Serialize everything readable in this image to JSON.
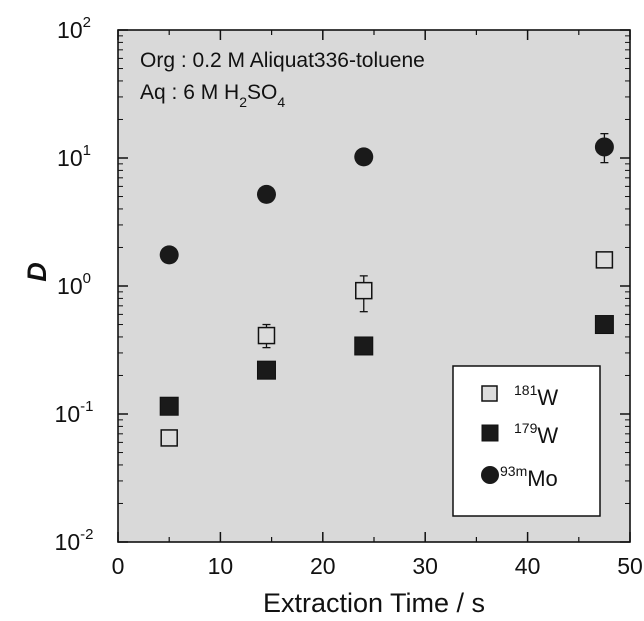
{
  "chart_data": {
    "type": "scatter",
    "title": "",
    "xlabel": "Extraction Time / s",
    "ylabel": "D",
    "xlim": [
      0,
      50
    ],
    "ylim": [
      0.01,
      100
    ],
    "y_scale": "log",
    "x_ticks": [
      "0",
      "10",
      "20",
      "30",
      "40",
      "50"
    ],
    "y_ticks": [
      {
        "base": "10",
        "exp": "-2"
      },
      {
        "base": "10",
        "exp": "-1"
      },
      {
        "base": "10",
        "exp": "0"
      },
      {
        "base": "10",
        "exp": "1"
      },
      {
        "base": "10",
        "exp": "2"
      }
    ],
    "annotation": {
      "line1": "Org : 0.2 M Aliquat336-toluene",
      "line2_pre": "Aq : 6 M H",
      "line2_sub1": "2",
      "line2_mid": "SO",
      "line2_sub2": "4"
    },
    "plot_background": "#d9d9d9",
    "legend_position": "bottom-right",
    "series": [
      {
        "name": "181W",
        "label_sup": "181",
        "label_main": "W",
        "marker": "open-square",
        "points": [
          {
            "x": 5,
            "y": 0.065
          },
          {
            "x": 14.5,
            "y": 0.41,
            "err_low": 0.33,
            "err_high": 0.5
          },
          {
            "x": 24,
            "y": 0.92,
            "err_low": 0.63,
            "err_high": 1.2
          },
          {
            "x": 47.5,
            "y": 1.6
          }
        ]
      },
      {
        "name": "179W",
        "label_sup": "179",
        "label_main": "W",
        "marker": "filled-square",
        "points": [
          {
            "x": 5,
            "y": 0.115
          },
          {
            "x": 14.5,
            "y": 0.22
          },
          {
            "x": 24,
            "y": 0.34
          },
          {
            "x": 47.5,
            "y": 0.5
          }
        ]
      },
      {
        "name": "93mMo",
        "label_sup": "93m",
        "label_main": "Mo",
        "marker": "filled-circle",
        "points": [
          {
            "x": 5,
            "y": 1.75
          },
          {
            "x": 14.5,
            "y": 5.2
          },
          {
            "x": 24,
            "y": 10.2
          },
          {
            "x": 47.5,
            "y": 12.2,
            "err_low": 9.2,
            "err_high": 15.5
          }
        ]
      }
    ]
  }
}
